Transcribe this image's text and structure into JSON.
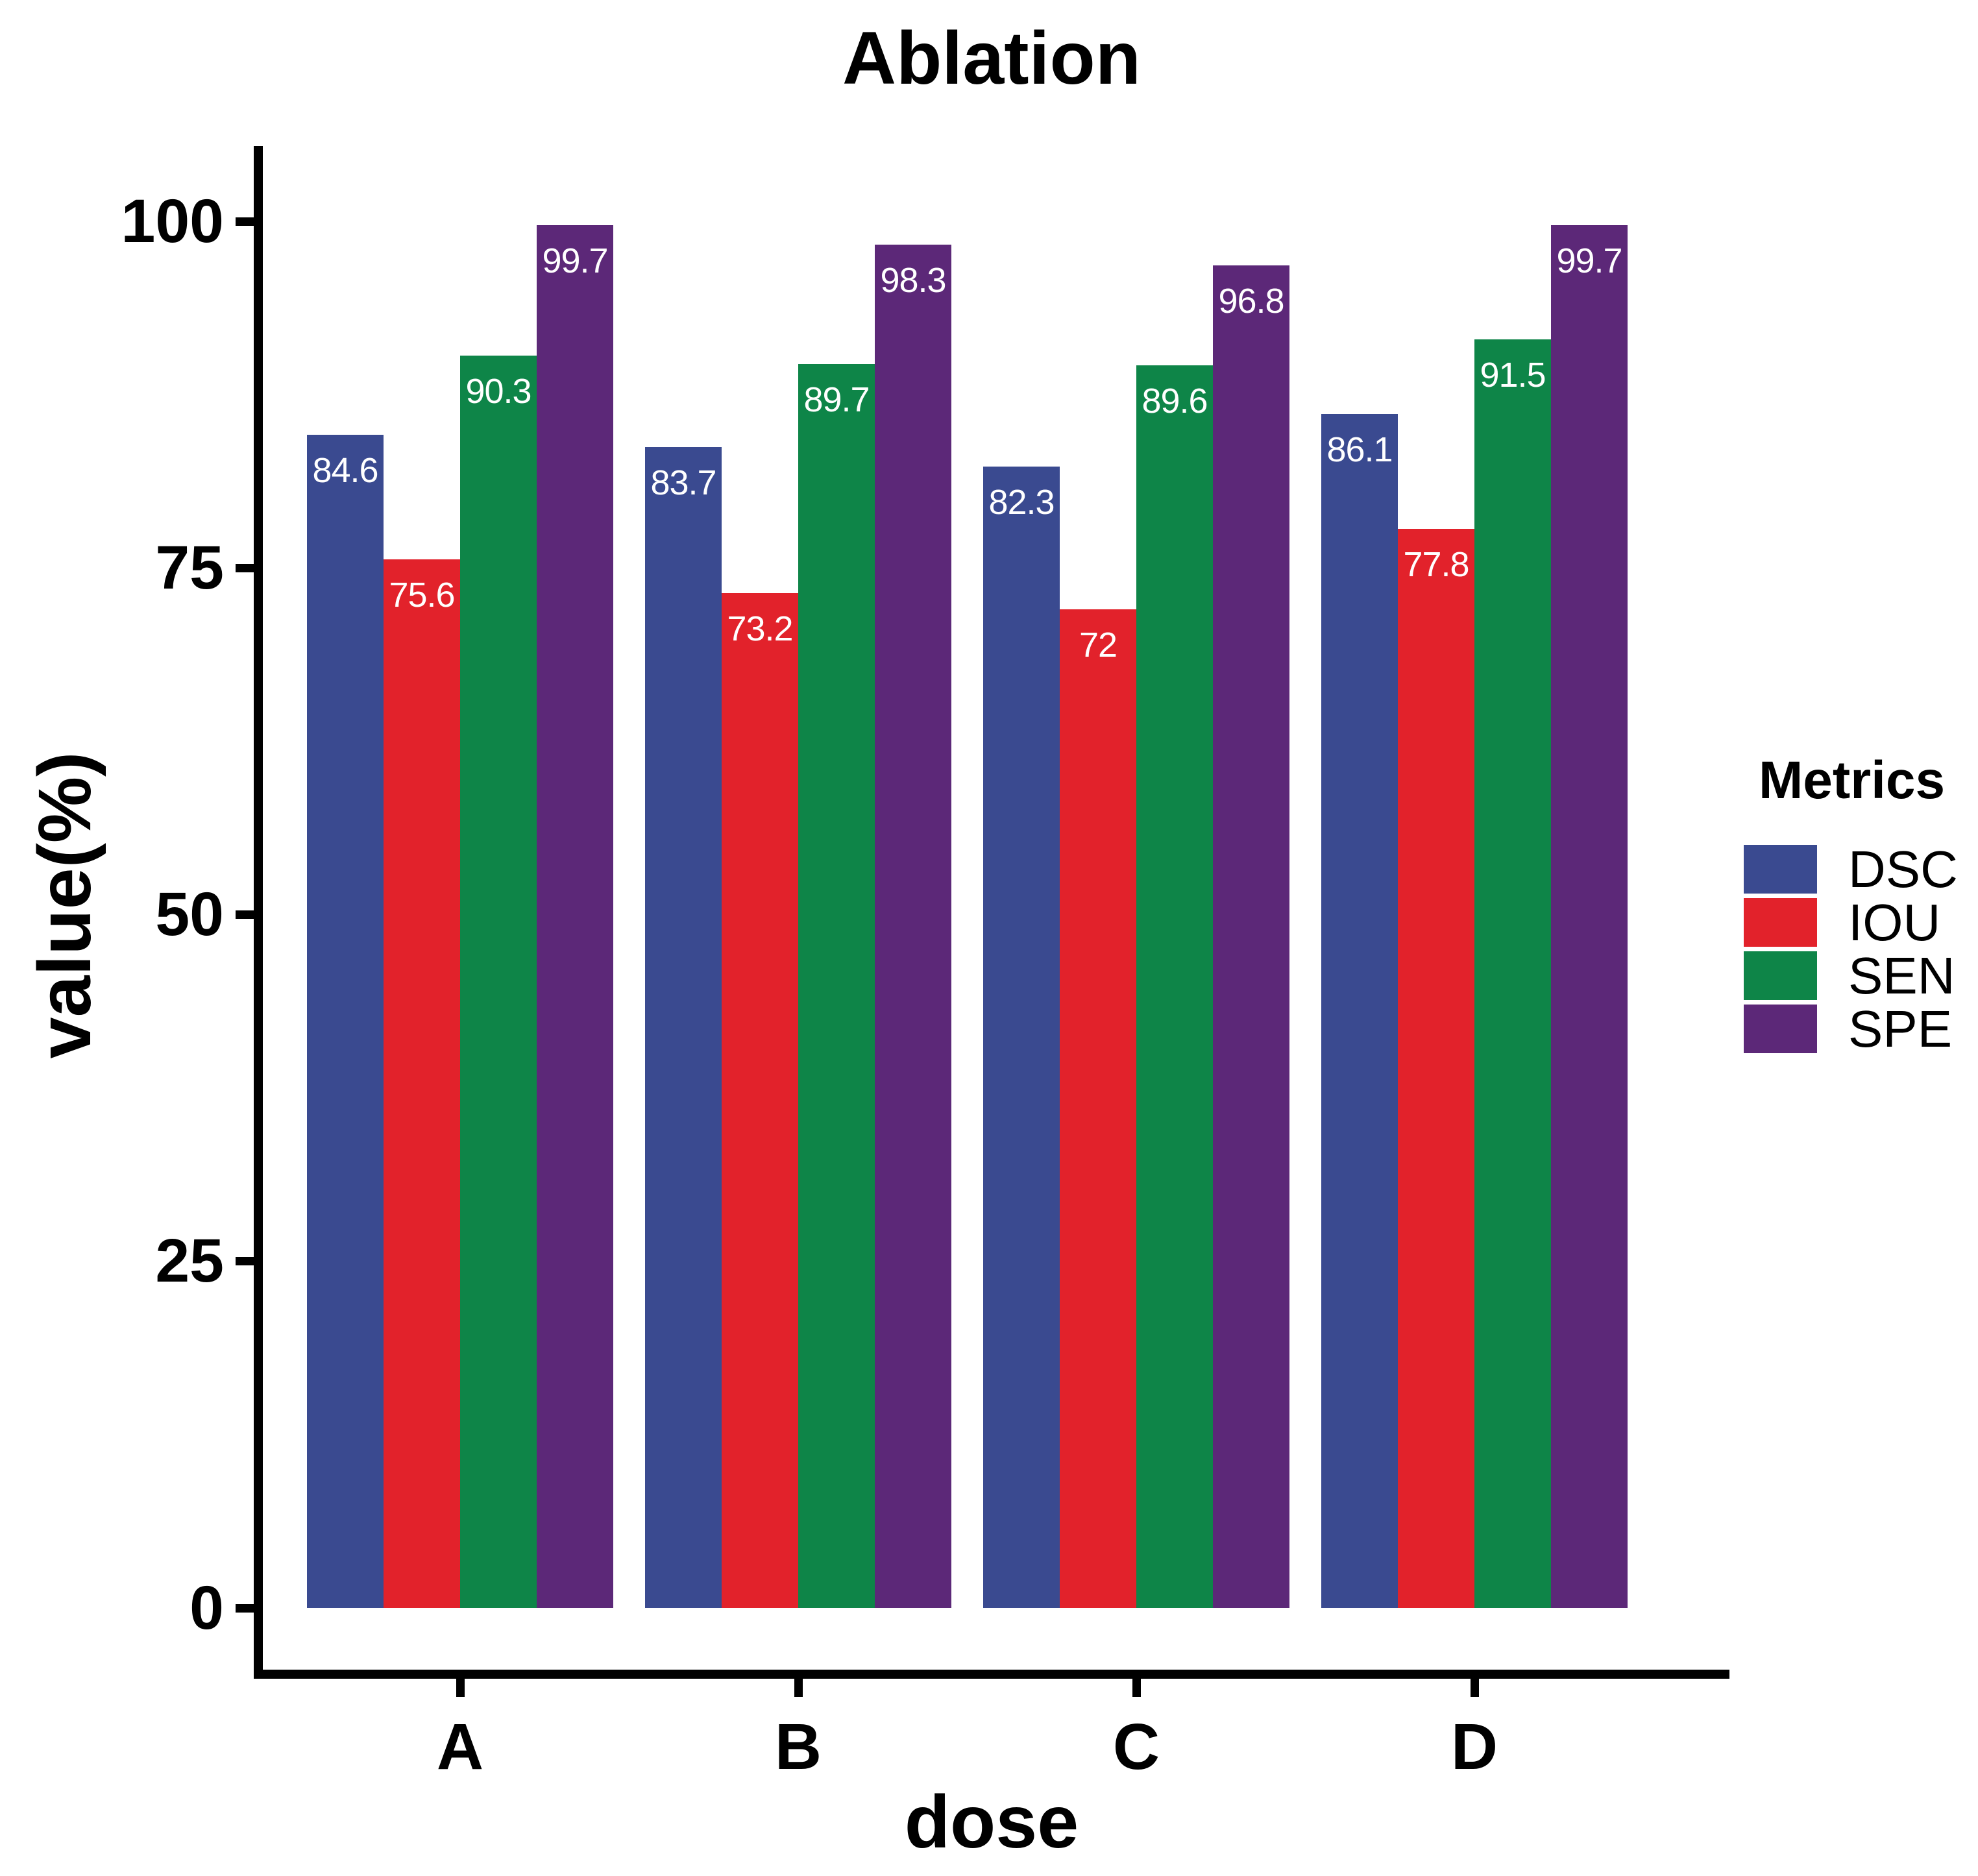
{
  "chart_data": {
    "type": "bar",
    "title": "Ablation",
    "xlabel": "dose",
    "ylabel": "value(%)",
    "categories": [
      "A",
      "B",
      "C",
      "D"
    ],
    "series": [
      {
        "name": "DSC",
        "color": "#3A4A90",
        "values": [
          84.6,
          83.7,
          82.3,
          86.1
        ]
      },
      {
        "name": "IOU",
        "color": "#E2222B",
        "values": [
          75.6,
          73.2,
          72,
          77.8
        ]
      },
      {
        "name": "SEN",
        "color": "#0E8548",
        "values": [
          90.3,
          89.7,
          89.6,
          91.5
        ]
      },
      {
        "name": "SPE",
        "color": "#5C2878",
        "values": [
          99.7,
          98.3,
          96.8,
          99.7
        ]
      }
    ],
    "yticks": [
      0,
      25,
      50,
      75,
      100
    ],
    "ylim": [
      -5,
      105
    ],
    "grid": "off",
    "value_label_color": "#FFFFFF",
    "axis_color": "#000000",
    "legend": {
      "title": "Metrics",
      "position": "right"
    }
  }
}
